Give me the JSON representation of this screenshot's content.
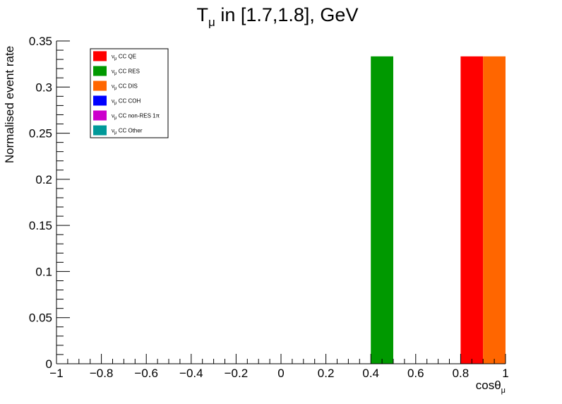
{
  "chart_data": {
    "type": "bar",
    "title": "T",
    "title_sub": "μ",
    "title_rest": " in [1.7,1.8], GeV",
    "xlabel": "cosθ",
    "xlabel_sub": "μ",
    "ylabel": "Normalised event rate",
    "xlim": [
      -1,
      1
    ],
    "ylim": [
      0,
      0.35
    ],
    "xticks": [
      -1,
      -0.8,
      -0.6,
      -0.4,
      -0.2,
      0,
      0.2,
      0.4,
      0.6,
      0.8,
      1
    ],
    "xtick_labels": [
      "−1",
      "−0.8",
      "−0.6",
      "−0.4",
      "−0.2",
      "0",
      "0.2",
      "0.4",
      "0.6",
      "0.8",
      "1"
    ],
    "yticks": [
      0,
      0.05,
      0.1,
      0.15,
      0.2,
      0.25,
      0.3,
      0.35
    ],
    "ytick_labels": [
      "0",
      "0.05",
      "0.1",
      "0.15",
      "0.2",
      "0.25",
      "0.3",
      "0.35"
    ],
    "bin_width": 0.1,
    "grid": false,
    "legend_position": "top-left",
    "series": [
      {
        "name": "ν",
        "sub": "μ",
        "suffix": " CC QE",
        "color": "#ff0000",
        "bins": [
          {
            "x0": 0.8,
            "x1": 0.9,
            "value": 0.3333
          }
        ]
      },
      {
        "name": "ν",
        "sub": "μ",
        "suffix": " CC RES",
        "color": "#009900",
        "bins": [
          {
            "x0": 0.4,
            "x1": 0.5,
            "value": 0.3333
          }
        ]
      },
      {
        "name": "ν",
        "sub": "μ",
        "suffix": " CC DIS",
        "color": "#ff6600",
        "bins": [
          {
            "x0": 0.9,
            "x1": 1.0,
            "value": 0.3333
          }
        ]
      },
      {
        "name": "ν",
        "sub": "μ",
        "suffix": " CC COH",
        "color": "#0000ff",
        "bins": []
      },
      {
        "name": "ν",
        "sub": "μ",
        "suffix": " CC non-RES 1π",
        "color": "#cc00cc",
        "bins": []
      },
      {
        "name": "ν",
        "sub": "μ",
        "suffix": " CC Other",
        "color": "#009999",
        "bins": []
      }
    ]
  }
}
